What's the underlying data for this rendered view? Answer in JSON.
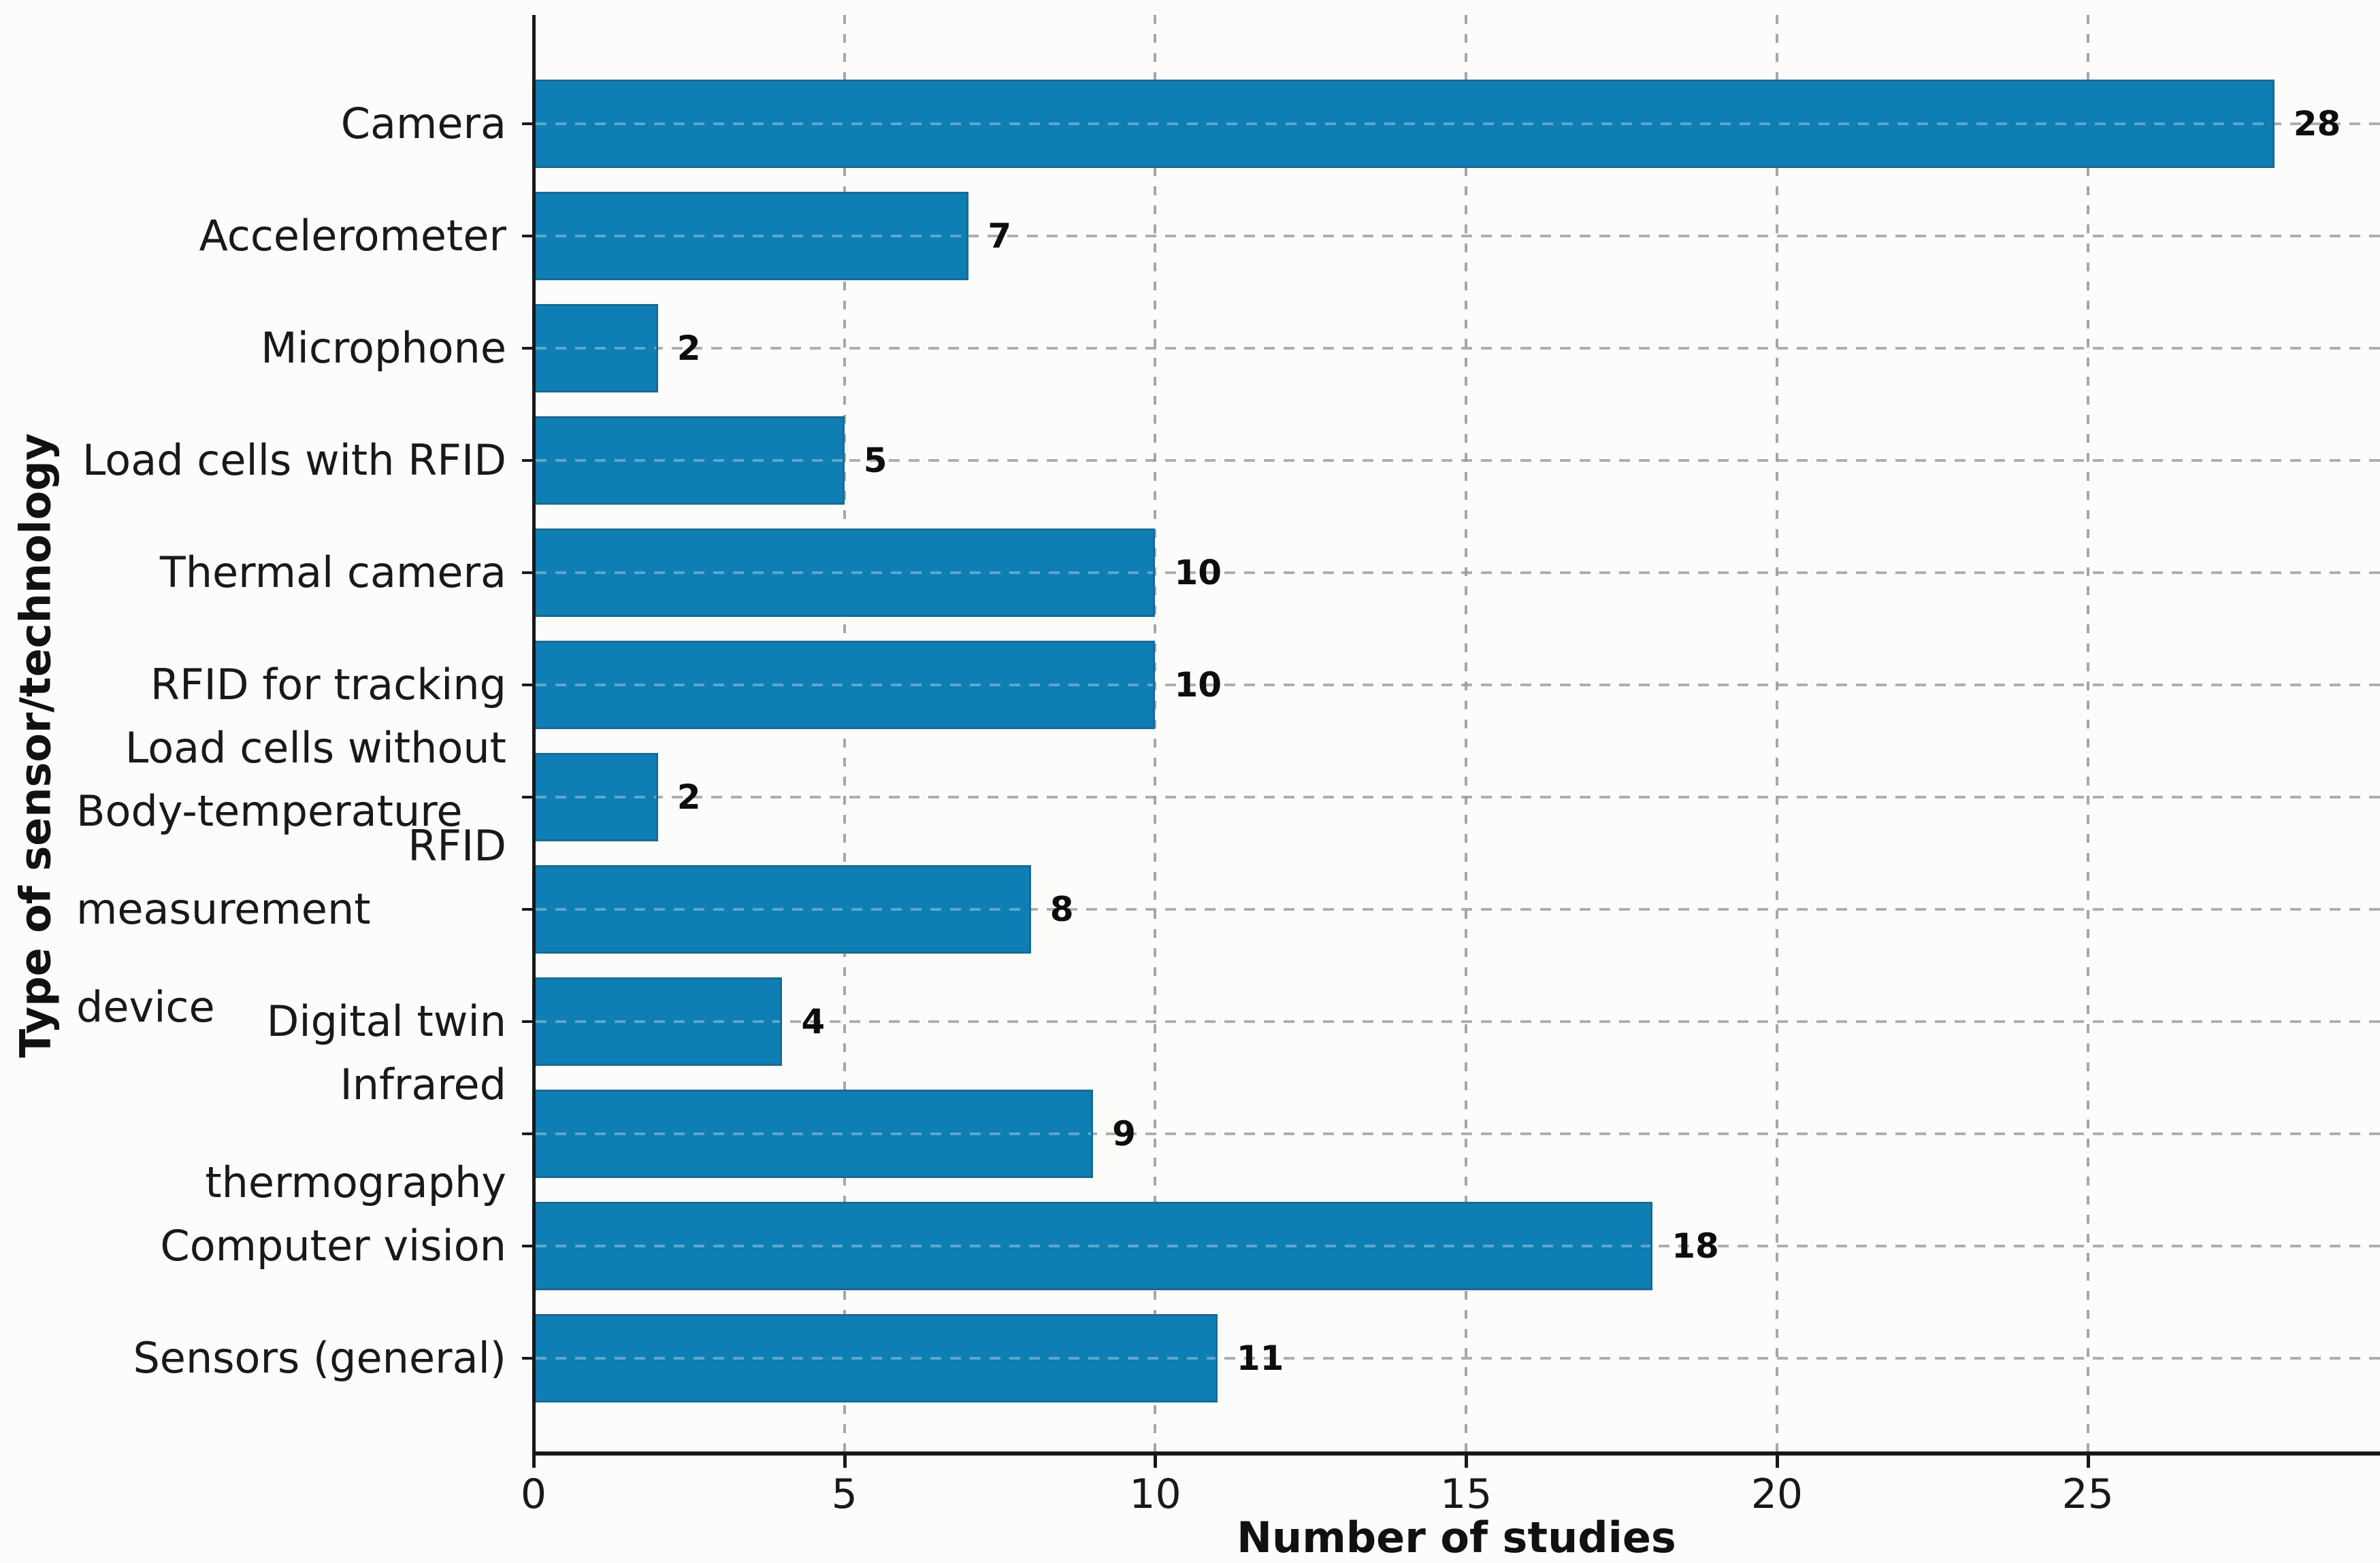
{
  "chart_data": {
    "type": "bar",
    "orientation": "horizontal",
    "title": "",
    "categories": [
      "Camera",
      "Accelerometer",
      "Microphone",
      "Load cells with RFID",
      "Thermal camera",
      "RFID for tracking",
      "Load cells without RFID",
      "Body-temperature\nmeasurement  device",
      "Digital twin",
      "Infrared thermography",
      "Computer vision",
      "Sensors (general)"
    ],
    "values": [
      28,
      7,
      2,
      5,
      10,
      10,
      2,
      8,
      4,
      9,
      18,
      11
    ],
    "value_labels": [
      "28",
      "7",
      "2",
      "5",
      "10",
      "10",
      "2",
      "8",
      "4",
      "9",
      "18",
      "11"
    ],
    "xlabel": "Number of studies",
    "ylabel": "Type of sensor/technology",
    "x_ticks": [
      0,
      5,
      10,
      15,
      20,
      25
    ],
    "x_tick_labels": [
      "0",
      "5",
      "10",
      "15",
      "20",
      "25"
    ],
    "xlim": [
      0,
      29.7
    ],
    "grid": "dashed",
    "legend": null,
    "colors": {
      "bar": "#0f7eb4",
      "grid": "#999999",
      "axis": "#17181c",
      "text": "#191919",
      "background": "#fcfcfb"
    }
  }
}
